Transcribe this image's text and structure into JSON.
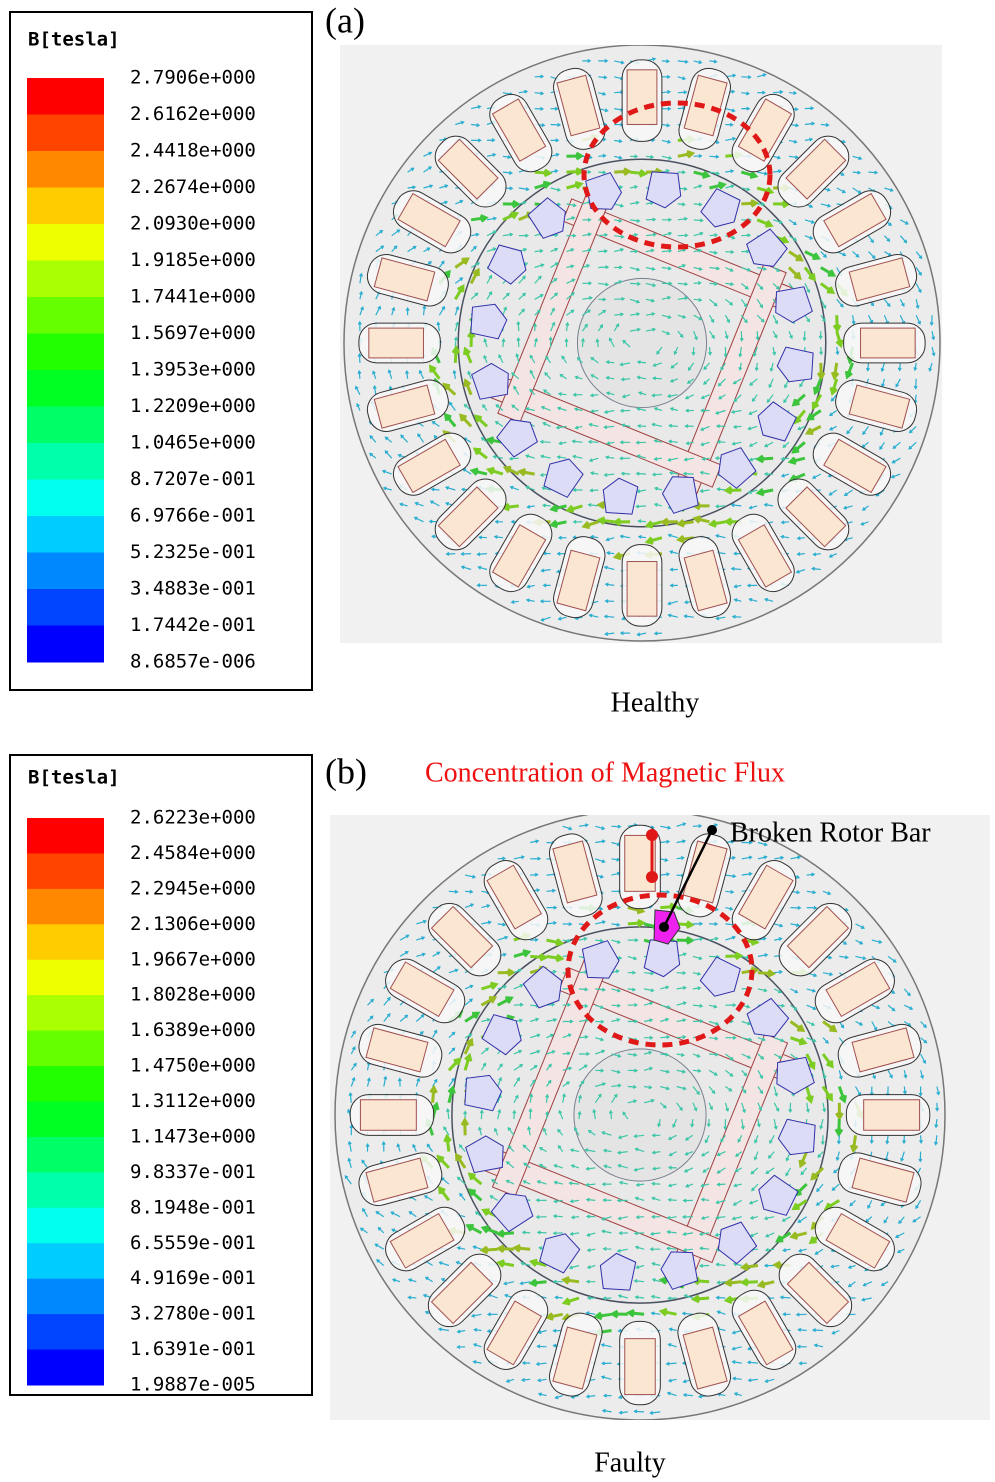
{
  "panels": [
    {
      "label": "(a)",
      "caption": "Healthy",
      "legend": {
        "title": "B[tesla]",
        "values": [
          "2.7906e+000",
          "2.6162e+000",
          "2.4418e+000",
          "2.2674e+000",
          "2.0930e+000",
          "1.9185e+000",
          "1.7441e+000",
          "1.5697e+000",
          "1.3953e+000",
          "1.2209e+000",
          "1.0465e+000",
          "8.7207e-001",
          "6.9766e-001",
          "5.2325e-001",
          "3.4883e-001",
          "1.7442e-001",
          "8.6857e-006"
        ]
      }
    },
    {
      "label": "(b)",
      "caption": "Faulty",
      "annotations": {
        "flux": "Concentration of Magnetic Flux",
        "broken_bar": "Broken Rotor Bar"
      },
      "legend": {
        "title": "B[tesla]",
        "values": [
          "2.6223e+000",
          "2.4584e+000",
          "2.2945e+000",
          "2.1306e+000",
          "1.9667e+000",
          "1.8028e+000",
          "1.6389e+000",
          "1.4750e+000",
          "1.3112e+000",
          "1.1473e+000",
          "9.8337e-001",
          "8.1948e-001",
          "6.5559e-001",
          "4.9169e-001",
          "3.2780e-001",
          "1.6391e-001",
          "1.9887e-005"
        ]
      }
    }
  ]
}
